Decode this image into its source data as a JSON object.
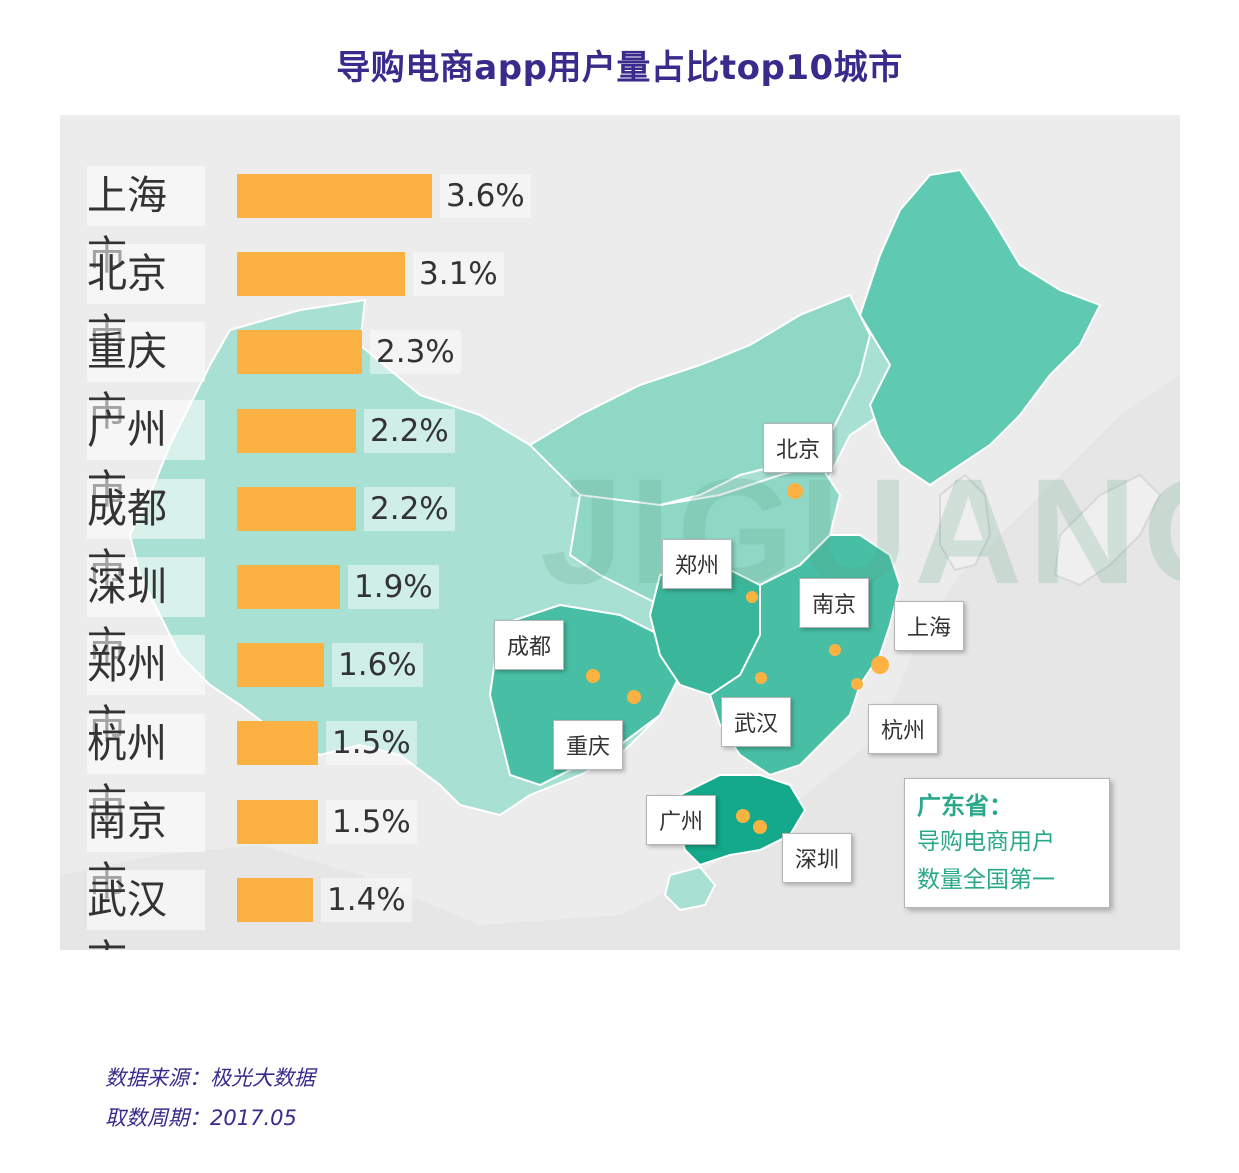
{
  "title": "导购电商app用户量占比top10城市",
  "colors": {
    "bar": "#fcb243",
    "title": "#3a2a8c",
    "accent": "#2aa88a",
    "map_bg": "#e3e3e3"
  },
  "chart_data": {
    "type": "bar",
    "orientation": "horizontal",
    "categories": [
      "上海市",
      "北京市",
      "重庆市",
      "广州市",
      "成都市",
      "深圳市",
      "郑州市",
      "杭州市",
      "南京市",
      "武汉市"
    ],
    "values": [
      3.6,
      3.1,
      2.3,
      2.2,
      2.2,
      1.9,
      1.6,
      1.5,
      1.5,
      1.4
    ],
    "value_labels": [
      "3.6%",
      "3.1%",
      "2.3%",
      "2.2%",
      "2.2%",
      "1.9%",
      "1.6%",
      "1.5%",
      "1.5%",
      "1.4%"
    ],
    "unit": "%"
  },
  "map_labels": [
    "北京",
    "郑州",
    "南京",
    "上海",
    "成都",
    "武汉",
    "杭州",
    "重庆",
    "广州",
    "深圳"
  ],
  "watermark": "JIGUANG",
  "callout": {
    "title": "广东省：",
    "line1": "导购电商用户",
    "line2": "数量全国第一"
  },
  "footer": {
    "source": "数据来源：极光大数据",
    "period": "取数周期：2017.05"
  }
}
